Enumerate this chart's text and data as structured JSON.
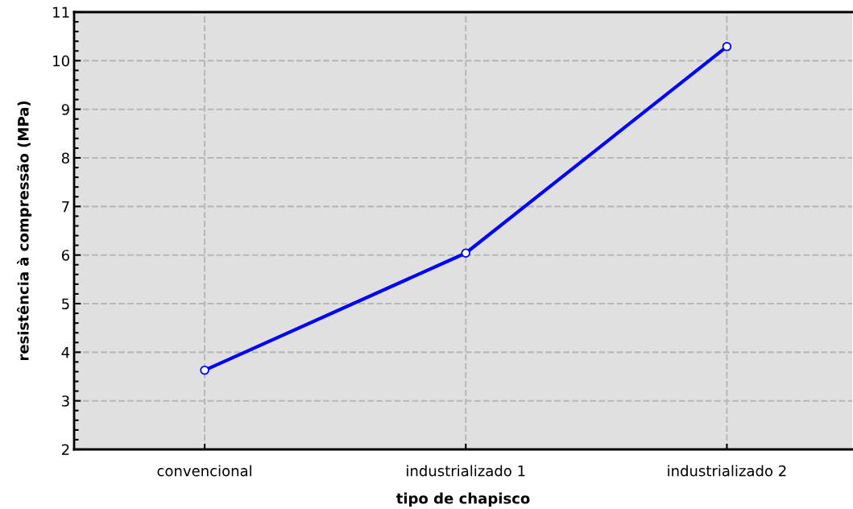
{
  "chart_data": {
    "type": "line",
    "xlabel": "tipo de chapisco",
    "ylabel": "resistência à compressão (MPa)",
    "categories": [
      "convencional",
      "industrializado 1",
      "industrializado 2"
    ],
    "series": [
      {
        "color": "#0000ff",
        "values": [
          3.63,
          6.04,
          10.29
        ]
      }
    ],
    "ylim": [
      2,
      11
    ],
    "yticks": [
      2,
      3,
      4,
      5,
      6,
      7,
      8,
      9,
      10,
      11
    ],
    "grid": true,
    "marker": "circle",
    "line_style": "solid",
    "legend": false
  }
}
